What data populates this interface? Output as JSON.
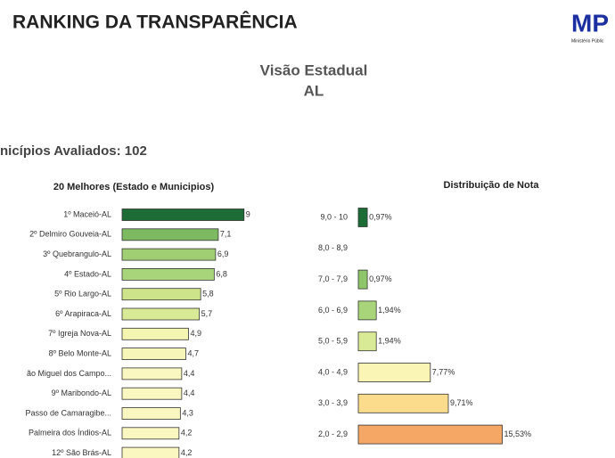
{
  "header": {
    "title": "RANKING DA TRANSPARÊNCIA",
    "logo": "MP",
    "logo_subtitle": "Ministério Públic",
    "view": "Visão Estadual",
    "state": "AL",
    "evaluated": "nicípios Avaliados: 102"
  },
  "chart_data": [
    {
      "type": "hbar",
      "title": "20 Melhores (Estado e Municipios)",
      "categories": [
        "1º Maceió-AL",
        "2º Delmiro Gouveia-AL",
        "3º Quebrangulo-AL",
        "4º Estado-AL",
        "5º Rio Largo-AL",
        "6º Arapiraca-AL",
        "7º Igreja Nova-AL",
        "8º Belo Monte-AL",
        "ão Miguel dos Campo...",
        "9º Maribondo-AL",
        "Passo de Camaragibe...",
        "Palmeira dos Índios-AL",
        "12º São Brás-AL"
      ],
      "values": [
        9,
        7.1,
        6.9,
        6.8,
        5.8,
        5.7,
        4.9,
        4.7,
        4.4,
        4.4,
        4.3,
        4.2,
        4.2
      ],
      "value_labels": [
        "9",
        "7,1",
        "6,9",
        "6,8",
        "5,8",
        "5,7",
        "4,9",
        "4,7",
        "4,4",
        "4,4",
        "4,3",
        "4,2",
        "4,2"
      ],
      "colors": [
        "#1d6b35",
        "#7cb960",
        "#9fcf72",
        "#a8d47a",
        "#cde48a",
        "#d8ea95",
        "#f3f5b0",
        "#f6f6b8",
        "#fbf7c0",
        "#fbf7c0",
        "#fbf7c0",
        "#fbf7c0",
        "#fbf7c0"
      ]
    },
    {
      "type": "hbar",
      "title": "Distribuição de Nota",
      "categories": [
        "9,0 - 10",
        "8,0 - 8,9",
        "7,0 - 7,9",
        "6,0 - 6,9",
        "5,0 - 5,9",
        "4,0 - 4,9",
        "3,0 - 3,9",
        "2,0 - 2,9"
      ],
      "values": [
        0.97,
        null,
        0.97,
        1.94,
        1.94,
        7.77,
        9.71,
        15.53
      ],
      "value_labels": [
        "0,97%",
        null,
        "0,97%",
        "1,94%",
        "1,94%",
        "7,77%",
        "9,71%",
        "15,53%"
      ],
      "colors": [
        "#1d6b35",
        "#1d6b35",
        "#8fc66a",
        "#a8d47a",
        "#d8ea95",
        "#fbf5b5",
        "#fbdc8c",
        "#f5a865"
      ]
    }
  ]
}
